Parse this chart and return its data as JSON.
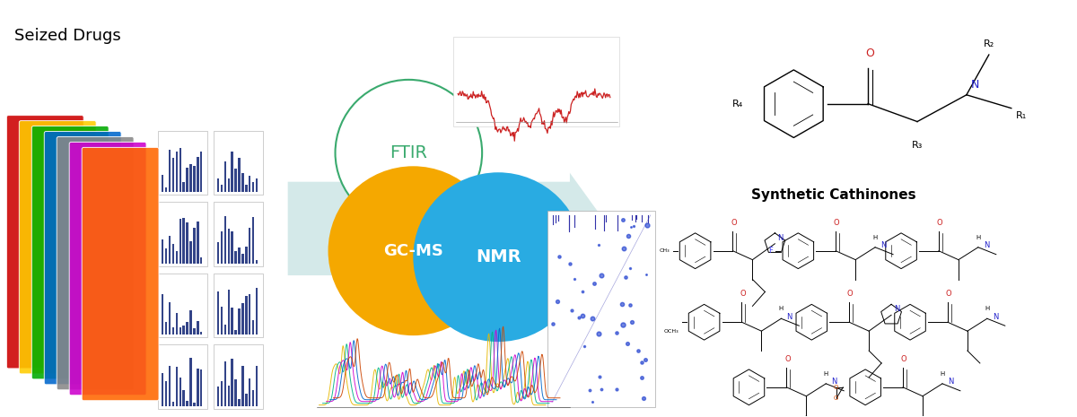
{
  "bg_color": "#ffffff",
  "seized_drugs_label": "Seized Drugs",
  "ftir_label": "FTIR",
  "ftir_color": "#3aaa6e",
  "ftir_circle_edge": "#3aaa6e",
  "gcms_label": "GC-MS",
  "gcms_color": "#f5a800",
  "nmr_label": "NMR",
  "nmr_color": "#29abe2",
  "arrow_color": "#b2d8d8",
  "synthetic_cathinones_label": "Synthetic Cathinones",
  "pkg_colors": [
    "#cc0000",
    "#ffcc00",
    "#00aa00",
    "#0066cc",
    "#888888",
    "#cc00cc",
    "#ff6600"
  ],
  "nmr1d_colors": [
    "#e6b800",
    "#00b386",
    "#cc00cc",
    "#0066cc",
    "#cc4400"
  ]
}
